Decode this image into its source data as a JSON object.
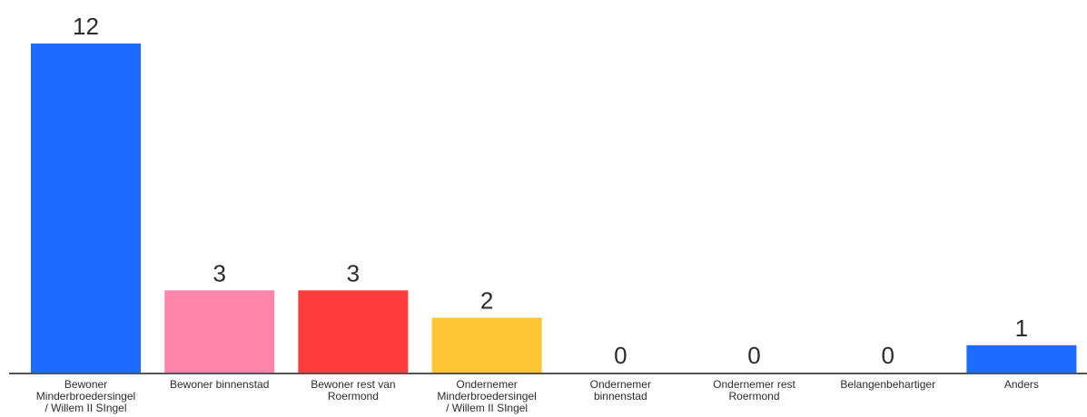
{
  "chart_data": {
    "type": "bar",
    "categories": [
      [
        "Bewoner",
        "Minderbroedersingel",
        "/ Willem II SIngel"
      ],
      [
        "Bewoner binnenstad"
      ],
      [
        "Bewoner rest van",
        "Roermond"
      ],
      [
        "Ondernemer",
        "Minderbroedersingel",
        "/ Willem II SIngel"
      ],
      [
        "Ondernemer",
        "binnenstad"
      ],
      [
        "Ondernemer rest",
        "Roermond"
      ],
      [
        "Belangenbehartiger"
      ],
      [
        "Anders"
      ]
    ],
    "values": [
      12,
      3,
      3,
      2,
      0,
      0,
      0,
      1
    ],
    "colors": [
      "#1e6bff",
      "#ff85ad",
      "#ff3d3d",
      "#ffc533",
      "#1e6bff",
      "#1e6bff",
      "#1e6bff",
      "#1e6bff"
    ],
    "ylim": [
      0,
      12
    ],
    "grid": false,
    "legend": "none"
  }
}
